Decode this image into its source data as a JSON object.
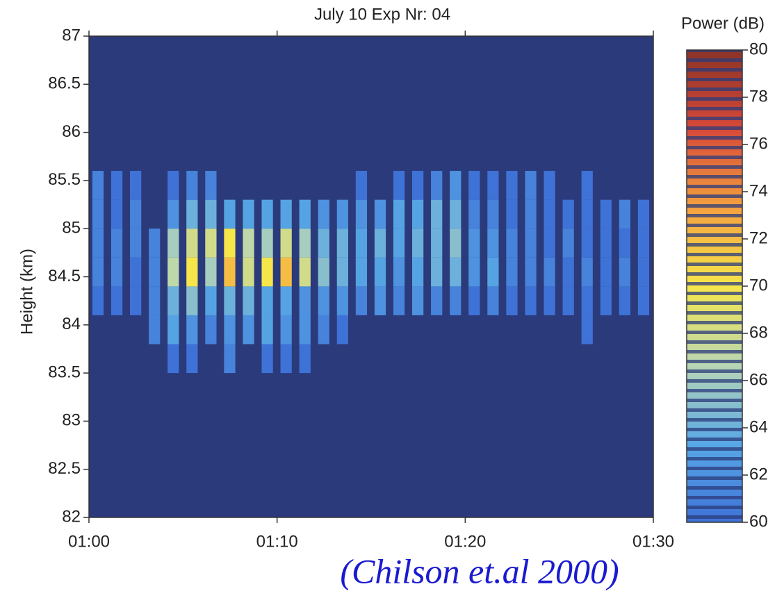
{
  "chart_data": {
    "type": "heatmap",
    "title": "July 10   Exp Nr: 04",
    "ylabel": "Height (km)",
    "colorbar_label": "Power (dB)",
    "annotation": "(Chilson et.al 2000)",
    "x": [
      60,
      61,
      62,
      63,
      64,
      65,
      66,
      67,
      68,
      69,
      70,
      71,
      72,
      73,
      74,
      75,
      76,
      77,
      78,
      79,
      80,
      81,
      82,
      83,
      84,
      85,
      86,
      87,
      88,
      89
    ],
    "y": [
      83.5,
      83.8,
      84.1,
      84.4,
      84.7,
      85.0,
      85.3
    ],
    "z": [
      [
        null,
        null,
        null,
        null,
        60,
        60,
        null,
        61,
        null,
        60,
        60,
        60,
        null,
        null,
        null,
        null,
        null,
        null,
        null,
        null,
        null,
        null,
        null,
        null,
        null,
        null,
        null,
        null,
        null,
        null
      ],
      [
        null,
        null,
        null,
        61,
        63,
        62,
        61,
        62,
        62,
        63,
        62,
        62,
        61,
        60,
        null,
        null,
        null,
        null,
        null,
        null,
        null,
        null,
        null,
        null,
        null,
        null,
        60,
        null,
        null,
        null
      ],
      [
        60,
        60,
        60,
        61,
        64,
        65,
        63,
        64,
        64,
        63,
        63,
        62,
        62,
        62,
        61,
        62,
        61,
        62,
        61,
        61,
        60,
        61,
        60,
        60,
        60,
        60,
        60,
        60,
        60,
        60
      ],
      [
        61,
        61,
        60,
        61,
        67,
        70,
        66,
        72,
        68,
        70,
        72,
        68,
        65,
        64,
        63,
        63,
        62,
        63,
        64,
        64,
        62,
        63,
        61,
        61,
        61,
        60,
        61,
        60,
        61,
        60
      ],
      [
        61,
        61,
        61,
        61,
        66,
        68,
        68,
        70,
        67,
        66,
        68,
        66,
        64,
        64,
        63,
        64,
        63,
        64,
        64,
        65,
        62,
        62,
        61,
        61,
        60,
        61,
        60,
        60,
        60,
        60
      ],
      [
        61,
        60,
        61,
        null,
        62,
        64,
        64,
        63,
        63,
        63,
        63,
        63,
        62,
        62,
        62,
        62,
        63,
        63,
        64,
        64,
        61,
        61,
        60,
        61,
        60,
        60,
        60,
        60,
        61,
        60
      ],
      [
        61,
        60,
        60,
        null,
        60,
        61,
        61,
        null,
        null,
        null,
        null,
        null,
        null,
        null,
        60,
        null,
        60,
        60,
        61,
        62,
        60,
        60,
        60,
        61,
        60,
        null,
        60,
        null,
        null,
        null
      ]
    ],
    "xlim": [
      60,
      90
    ],
    "xticks": [
      {
        "value": 60,
        "label": "01:00"
      },
      {
        "value": 70,
        "label": "01:10"
      },
      {
        "value": 80,
        "label": "01:20"
      },
      {
        "value": 90,
        "label": "01:30"
      }
    ],
    "ylim": [
      82,
      87
    ],
    "yticks": [
      82,
      82.5,
      83,
      83.5,
      84,
      84.5,
      85,
      85.5,
      86,
      86.5,
      87
    ],
    "zlim": [
      60,
      80
    ],
    "zticks": [
      60,
      62,
      64,
      66,
      68,
      70,
      72,
      74,
      76,
      78,
      80
    ],
    "background": "#2b3a7a",
    "colors": [
      "#3f72d6",
      "#58a8e6",
      "#b9d6b4",
      "#f6e64a",
      "#f4a13f",
      "#d6493a",
      "#8b3326"
    ]
  }
}
